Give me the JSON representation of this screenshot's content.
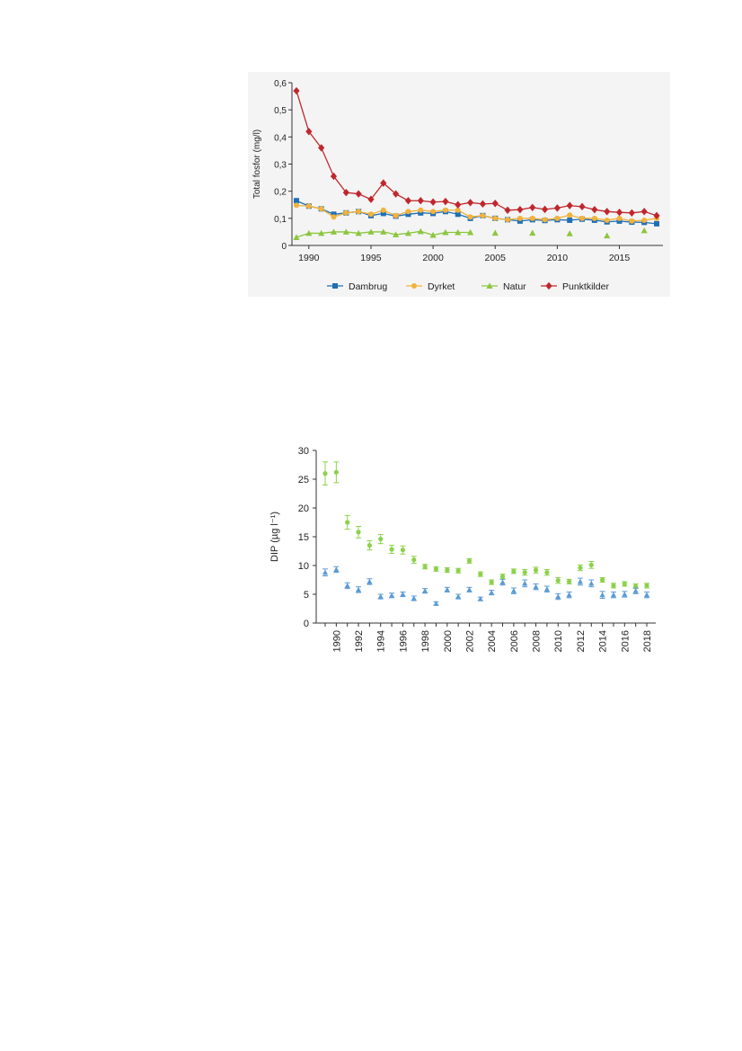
{
  "chart_data": [
    {
      "type": "line",
      "title": "",
      "xlabel": "",
      "ylabel": "Total fosfor (mg/l)",
      "xlim": [
        1989,
        2018
      ],
      "ylim": [
        0,
        0.6
      ],
      "x_ticks": [
        "1990",
        "1995",
        "2000",
        "2005",
        "2010",
        "2015"
      ],
      "y_ticks": [
        "0",
        "0,1",
        "0,2",
        "0,3",
        "0,4",
        "0,5",
        "0,6"
      ],
      "legend_position": "bottom",
      "grid": false,
      "series": [
        {
          "name": "Dambrug",
          "color": "#1f6fb5",
          "marker": "square",
          "x": [
            1989,
            1990,
            1991,
            1992,
            1993,
            1994,
            1995,
            1996,
            1997,
            1998,
            1999,
            2000,
            2001,
            2002,
            2003,
            2004,
            2005,
            2006,
            2007,
            2008,
            2009,
            2010,
            2011,
            2012,
            2013,
            2014,
            2015,
            2016,
            2017,
            2018
          ],
          "y": [
            0.165,
            0.145,
            0.135,
            0.115,
            0.12,
            0.125,
            0.11,
            0.118,
            0.108,
            0.115,
            0.12,
            0.118,
            0.125,
            0.115,
            0.1,
            0.11,
            0.1,
            0.095,
            0.09,
            0.095,
            0.092,
            0.095,
            0.093,
            0.097,
            0.093,
            0.087,
            0.09,
            0.086,
            0.085,
            0.08
          ]
        },
        {
          "name": "Dyrket",
          "color": "#f2b23c",
          "marker": "circle",
          "x": [
            1989,
            1990,
            1991,
            1992,
            1993,
            1994,
            1995,
            1996,
            1997,
            1998,
            1999,
            2000,
            2001,
            2002,
            2003,
            2004,
            2005,
            2006,
            2007,
            2008,
            2009,
            2010,
            2011,
            2012,
            2013,
            2014,
            2015,
            2016,
            2017,
            2018
          ],
          "y": [
            0.148,
            0.145,
            0.135,
            0.105,
            0.12,
            0.125,
            0.115,
            0.13,
            0.11,
            0.125,
            0.13,
            0.125,
            0.13,
            0.13,
            0.105,
            0.11,
            0.1,
            0.095,
            0.1,
            0.1,
            0.095,
            0.1,
            0.112,
            0.1,
            0.1,
            0.093,
            0.1,
            0.09,
            0.093,
            0.1
          ]
        },
        {
          "name": "Natur",
          "color": "#8cc63f",
          "marker": "triangle",
          "x": [
            1989,
            1990,
            1991,
            1992,
            1993,
            1994,
            1995,
            1996,
            1997,
            1998,
            1999,
            2000,
            2001,
            2002,
            2003,
            2005,
            2008,
            2011,
            2014,
            2017
          ],
          "y": [
            0.03,
            0.045,
            0.045,
            0.05,
            0.05,
            0.045,
            0.05,
            0.05,
            0.04,
            0.045,
            0.052,
            0.038,
            0.048,
            0.048,
            0.048,
            0.046,
            0.046,
            0.044,
            0.036,
            0.055
          ],
          "line_until": 2003
        },
        {
          "name": "Punktkilder",
          "color": "#c0272d",
          "marker": "diamond",
          "x": [
            1989,
            1990,
            1991,
            1992,
            1993,
            1994,
            1995,
            1996,
            1997,
            1998,
            1999,
            2000,
            2001,
            2002,
            2003,
            2004,
            2005,
            2006,
            2007,
            2008,
            2009,
            2010,
            2011,
            2012,
            2013,
            2014,
            2015,
            2016,
            2017,
            2018
          ],
          "y": [
            0.57,
            0.42,
            0.36,
            0.255,
            0.195,
            0.19,
            0.17,
            0.23,
            0.19,
            0.165,
            0.165,
            0.16,
            0.162,
            0.15,
            0.158,
            0.153,
            0.155,
            0.13,
            0.132,
            0.14,
            0.133,
            0.138,
            0.147,
            0.143,
            0.132,
            0.125,
            0.122,
            0.12,
            0.125,
            0.11
          ]
        }
      ]
    },
    {
      "type": "scatter",
      "title": "",
      "xlabel": "",
      "ylabel": "DIP (µg l⁻¹)",
      "xlim": [
        1989,
        2018
      ],
      "ylim": [
        0,
        30
      ],
      "x_ticks": [
        "1990",
        "1992",
        "1994",
        "1996",
        "1998",
        "2000",
        "2002",
        "2004",
        "2006",
        "2008",
        "2010",
        "2012",
        "2014",
        "2016",
        "2018"
      ],
      "y_ticks": [
        "0",
        "5",
        "10",
        "15",
        "20",
        "25",
        "30"
      ],
      "grid": false,
      "series": [
        {
          "color": "#8cd14a",
          "marker": "circle",
          "x": [
            1989,
            1990,
            1991,
            1992,
            1993,
            1994,
            1995,
            1996,
            1997,
            1998,
            1999,
            2000,
            2001,
            2002,
            2003,
            2004,
            2005,
            2006,
            2007,
            2008,
            2009,
            2010,
            2011,
            2012,
            2013,
            2014,
            2015,
            2016,
            2017,
            2018
          ],
          "y": [
            26.0,
            26.2,
            17.5,
            15.8,
            13.5,
            14.6,
            12.8,
            12.7,
            11.0,
            9.8,
            9.4,
            9.2,
            9.1,
            10.8,
            8.5,
            7.1,
            8.1,
            9.0,
            8.8,
            9.2,
            8.8,
            7.4,
            7.2,
            9.6,
            10.1,
            7.5,
            6.5,
            6.8,
            6.4,
            6.5
          ],
          "err": [
            2.0,
            1.8,
            1.2,
            1.0,
            0.8,
            0.8,
            0.7,
            0.7,
            0.6,
            0.4,
            0.4,
            0.4,
            0.4,
            0.4,
            0.4,
            0.4,
            0.4,
            0.4,
            0.5,
            0.5,
            0.5,
            0.5,
            0.4,
            0.5,
            0.6,
            0.4,
            0.4,
            0.4,
            0.4,
            0.4
          ]
        },
        {
          "color": "#5b9bd5",
          "marker": "triangle",
          "x": [
            1989,
            1990,
            1991,
            1992,
            1993,
            1994,
            1995,
            1996,
            1997,
            1998,
            1999,
            2000,
            2001,
            2002,
            2003,
            2004,
            2005,
            2006,
            2007,
            2008,
            2009,
            2010,
            2011,
            2012,
            2013,
            2014,
            2015,
            2016,
            2017,
            2018
          ],
          "y": [
            8.8,
            9.3,
            6.5,
            5.8,
            7.2,
            4.6,
            4.8,
            5.0,
            4.3,
            5.6,
            3.4,
            5.8,
            4.6,
            5.8,
            4.2,
            5.3,
            7.1,
            5.6,
            6.9,
            6.3,
            5.9,
            4.6,
            4.9,
            7.2,
            6.9,
            4.9,
            4.9,
            5.0,
            5.6,
            4.9
          ],
          "err": [
            0.6,
            0.5,
            0.5,
            0.5,
            0.5,
            0.4,
            0.4,
            0.4,
            0.4,
            0.4,
            0.3,
            0.4,
            0.4,
            0.4,
            0.3,
            0.4,
            0.5,
            0.5,
            0.6,
            0.5,
            0.5,
            0.5,
            0.5,
            0.6,
            0.6,
            0.6,
            0.5,
            0.5,
            0.5,
            0.5
          ]
        }
      ]
    }
  ]
}
